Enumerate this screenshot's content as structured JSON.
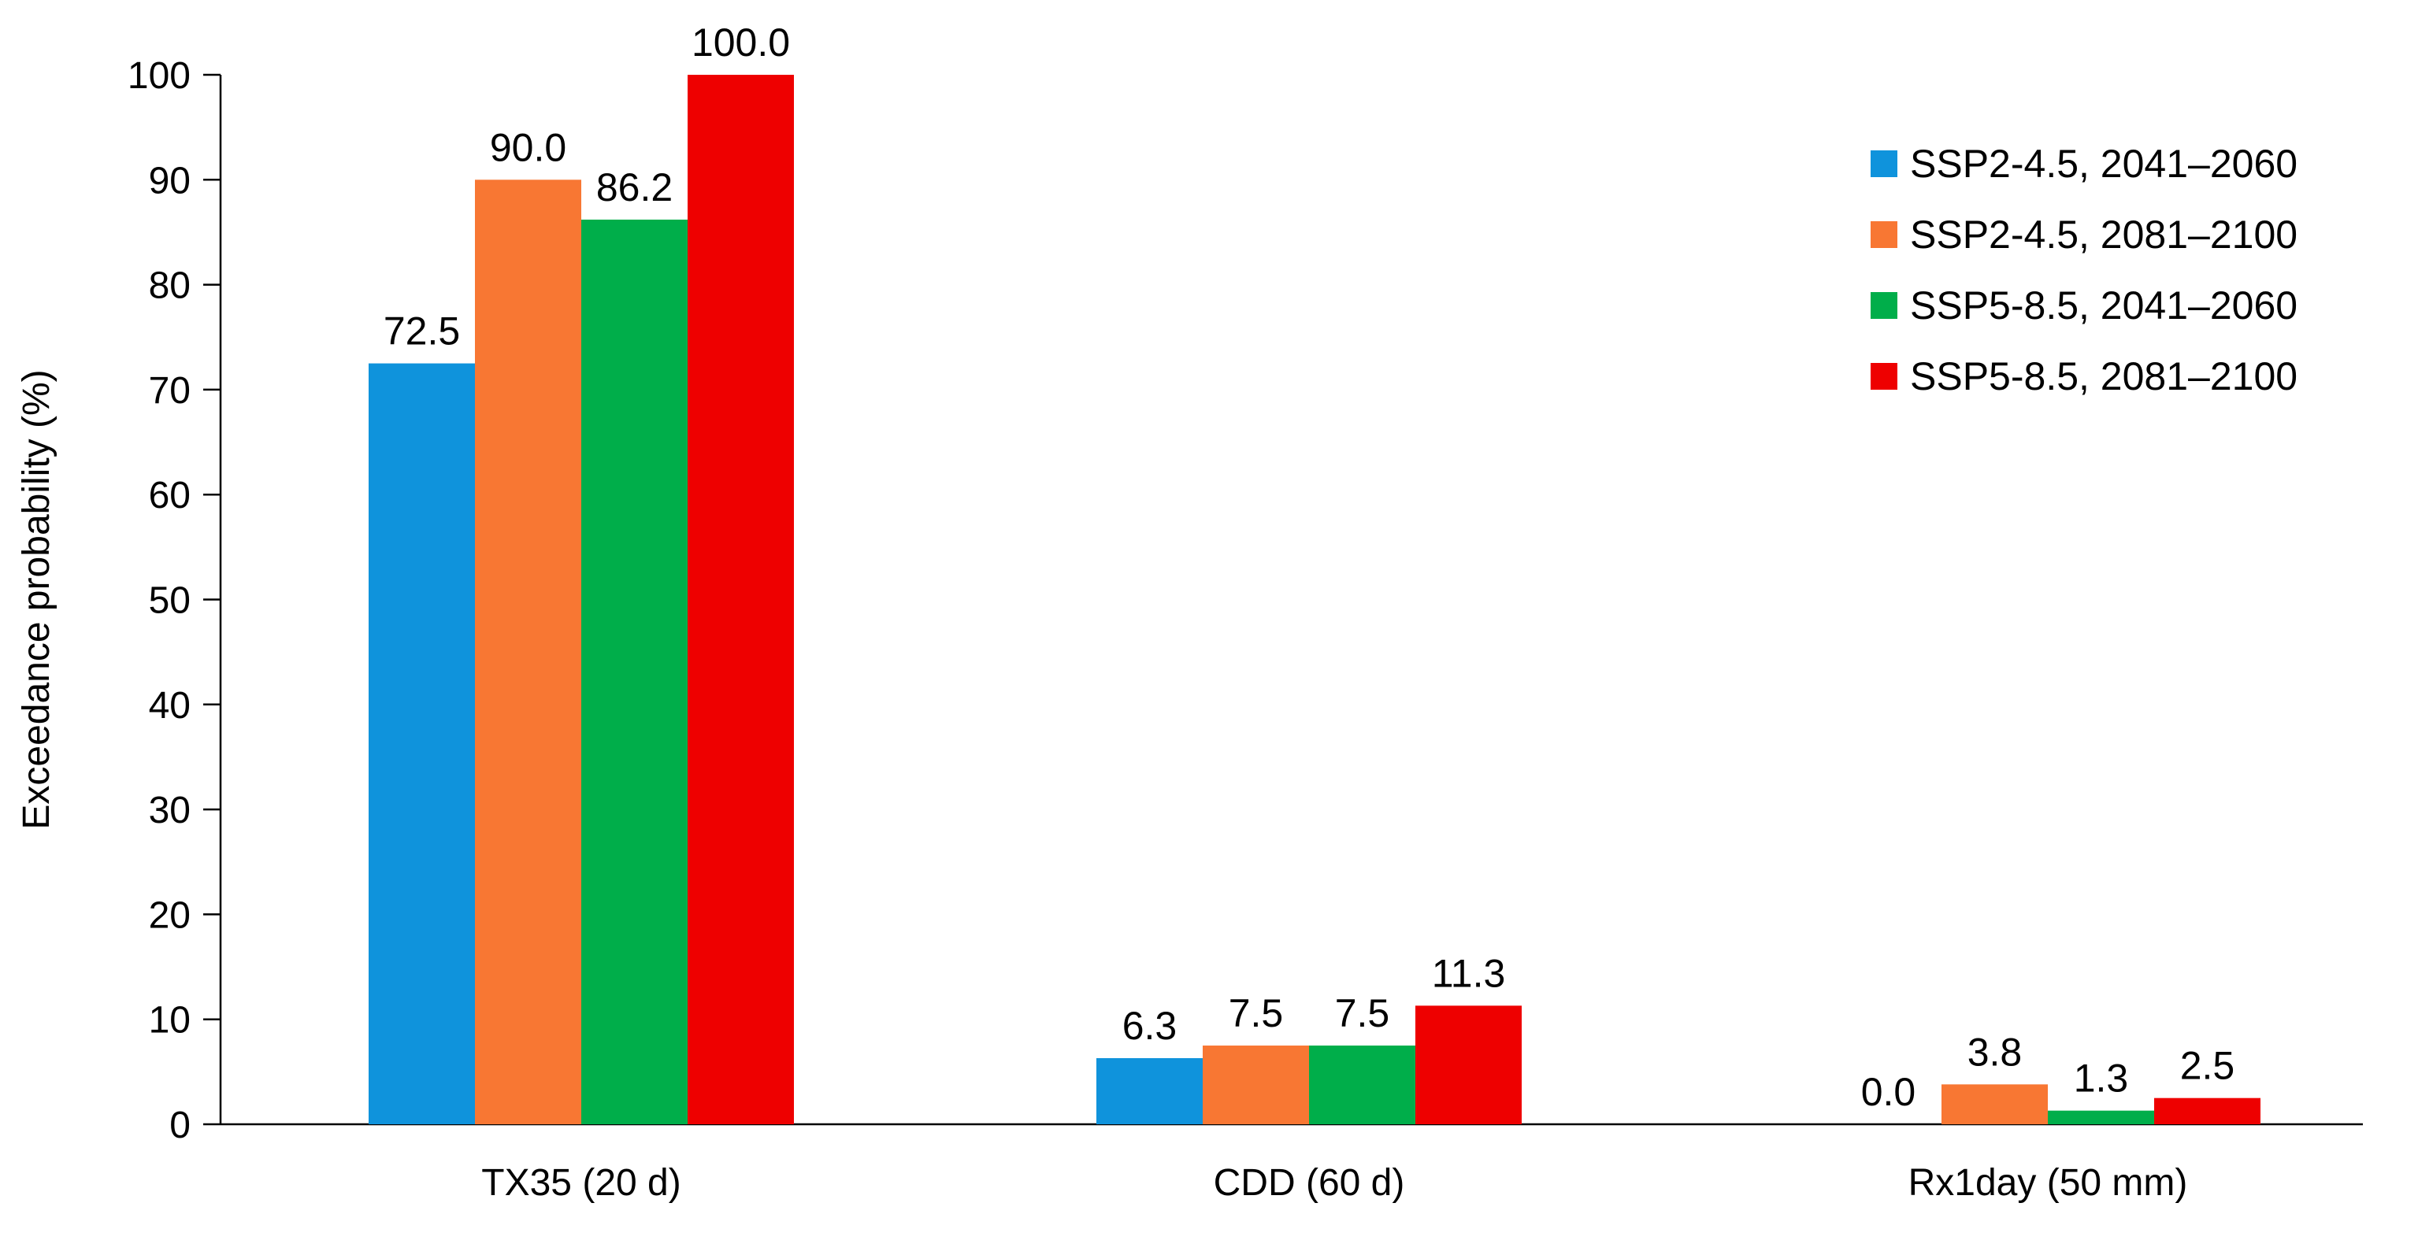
{
  "chart_data": {
    "type": "bar",
    "title": "",
    "xlabel": "",
    "ylabel": "Exceedance probability (%)",
    "ylim": [
      0,
      100
    ],
    "yticks": [
      0,
      10,
      20,
      30,
      40,
      50,
      60,
      70,
      80,
      90,
      100
    ],
    "grid": false,
    "legend_position": "top-right",
    "value_format_decimals": 1,
    "categories": [
      "TX35 (20 d)",
      "CDD (60 d)",
      "Rx1day (50 mm)"
    ],
    "series": [
      {
        "name": "SSP2-4.5, 2041–2060",
        "color": "#0F93DC",
        "values": [
          72.5,
          6.3,
          0.0
        ]
      },
      {
        "name": "SSP2-4.5, 2081–2100",
        "color": "#F87733",
        "values": [
          90.0,
          7.5,
          3.8
        ]
      },
      {
        "name": "SSP5-8.5, 2041–2060",
        "color": "#00AE4A",
        "values": [
          86.2,
          7.5,
          1.3
        ]
      },
      {
        "name": "SSP5-8.5, 2081–2100",
        "color": "#EE0000",
        "values": [
          100.0,
          11.3,
          2.5
        ]
      }
    ]
  }
}
